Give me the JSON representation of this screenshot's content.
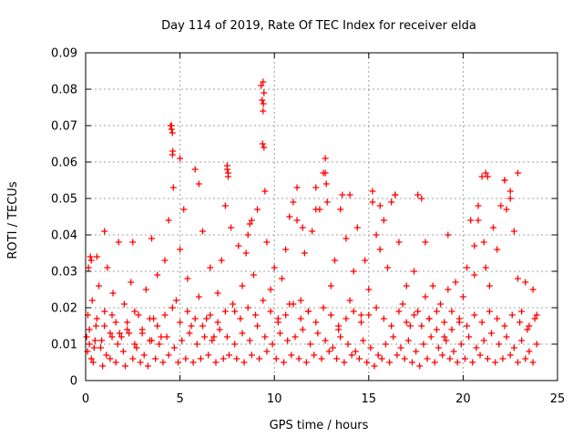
{
  "chart_data": {
    "type": "scatter",
    "title": "Day 114 of 2019, Rate Of TEC Index for receiver elda",
    "xlabel": "GPS time / hours",
    "ylabel": "ROTI / TECUs",
    "xlim": [
      0,
      25
    ],
    "ylim": [
      0,
      0.09
    ],
    "xticks": [
      0,
      5,
      10,
      15,
      20,
      25
    ],
    "yticks": [
      0,
      0.01,
      0.02,
      0.03,
      0.04,
      0.05,
      0.06,
      0.07,
      0.08,
      0.09
    ],
    "xtick_labels": [
      "0",
      "5",
      "10",
      "15",
      "20",
      "25"
    ],
    "ytick_labels": [
      "0",
      "0.01",
      "0.02",
      "0.03",
      "0.04",
      "0.05",
      "0.06",
      "0.07",
      "0.08",
      "0.09"
    ],
    "grid": true,
    "marker": "+",
    "marker_color": "#ff0000",
    "series": [
      {
        "name": "ROTI",
        "x": [
          0.05,
          0.12,
          0.2,
          0.25,
          0.35,
          0.45,
          0.55,
          0.7,
          0.85,
          1.0,
          1.15,
          1.3,
          1.45,
          1.6,
          1.75,
          1.9,
          2.05,
          2.2,
          2.4,
          2.6,
          2.8,
          3.0,
          3.2,
          3.4,
          3.6,
          3.8,
          4.0,
          4.2,
          4.4,
          4.5,
          4.55,
          4.6,
          4.65,
          4.8,
          5.0,
          5.2,
          5.4,
          5.6,
          5.8,
          6.0,
          6.2,
          6.4,
          6.6,
          6.8,
          7.0,
          7.2,
          7.4,
          7.5,
          7.55,
          7.7,
          7.9,
          8.1,
          8.3,
          8.5,
          8.7,
          8.9,
          9.1,
          9.3,
          9.35,
          9.4,
          9.45,
          9.5,
          9.6,
          9.8,
          10.0,
          10.2,
          10.4,
          10.6,
          10.8,
          11.0,
          11.2,
          11.4,
          11.6,
          11.8,
          12.0,
          12.2,
          12.4,
          12.6,
          12.7,
          12.8,
          13.0,
          13.2,
          13.4,
          13.6,
          13.8,
          14.0,
          14.2,
          14.4,
          14.6,
          14.8,
          15.0,
          15.2,
          15.4,
          15.6,
          15.8,
          16.0,
          16.2,
          16.4,
          16.6,
          16.8,
          17.0,
          17.2,
          17.4,
          17.6,
          17.8,
          18.0,
          18.2,
          18.4,
          18.6,
          18.8,
          19.0,
          19.2,
          19.4,
          19.6,
          19.8,
          20.0,
          20.2,
          20.4,
          20.6,
          20.8,
          21.0,
          21.1,
          21.2,
          21.4,
          21.6,
          21.8,
          22.0,
          22.2,
          22.3,
          22.5,
          22.7,
          22.9,
          23.1,
          23.3,
          23.5,
          23.7,
          23.9,
          0.1,
          0.3,
          0.5,
          0.8,
          1.1,
          1.4,
          1.7,
          2.0,
          2.3,
          2.7,
          3.1,
          3.5,
          3.9,
          4.3,
          4.7,
          5.1,
          5.5,
          5.9,
          6.3,
          6.7,
          7.1,
          7.5,
          7.9,
          8.3,
          8.7,
          9.1,
          9.5,
          9.9,
          10.3,
          10.7,
          11.1,
          11.5,
          11.9,
          12.3,
          12.7,
          13.1,
          13.5,
          13.9,
          14.3,
          14.7,
          15.1,
          15.5,
          15.9,
          16.3,
          16.7,
          17.1,
          17.5,
          17.9,
          18.3,
          18.7,
          19.1,
          19.5,
          19.9,
          20.3,
          20.7,
          21.1,
          21.5,
          21.9,
          22.3,
          22.7,
          23.1,
          23.5,
          23.9,
          0.2,
          0.6,
          1.0,
          1.4,
          1.8,
          2.2,
          2.6,
          3.0,
          3.4,
          3.8,
          4.2,
          4.6,
          5.0,
          5.4,
          5.8,
          6.2,
          6.6,
          7.0,
          7.4,
          7.8,
          8.2,
          8.6,
          9.0,
          9.4,
          9.8,
          10.2,
          10.6,
          11.0,
          11.4,
          11.8,
          12.2,
          12.6,
          13.0,
          13.4,
          13.8,
          14.2,
          14.6,
          15.0,
          15.4,
          15.8,
          16.2,
          16.6,
          17.0,
          17.4,
          17.8,
          18.2,
          18.6,
          19.0,
          19.4,
          19.8,
          20.2,
          20.6,
          21.0,
          21.4,
          21.8,
          22.2,
          22.6,
          23.0,
          23.4,
          23.8,
          0.4,
          0.9,
          1.3,
          1.6,
          2.1,
          2.5,
          2.9,
          3.3,
          3.7,
          4.1,
          4.4,
          4.9,
          5.3,
          5.7,
          6.1,
          6.5,
          6.9,
          7.3,
          7.6,
          8.0,
          8.4,
          8.8,
          9.2,
          9.6,
          10.1,
          10.5,
          10.9,
          11.3,
          11.7,
          12.1,
          12.5,
          12.9,
          13.3,
          13.7,
          14.1,
          14.5,
          14.9,
          15.3,
          15.7,
          16.1,
          16.5,
          16.9,
          17.3,
          17.7,
          18.1,
          18.5,
          18.9,
          19.3,
          19.7,
          20.1,
          20.5,
          20.9,
          21.3,
          21.7,
          22.1,
          22.5,
          22.9,
          23.3,
          23.7,
          4.55,
          4.6,
          4.62,
          9.4,
          9.45,
          9.42,
          9.38,
          12.7,
          12.75,
          5.0,
          6.0,
          7.5,
          7.55,
          11.2,
          13.5,
          14.0,
          15.2,
          15.6,
          16.4,
          17.6,
          21.2,
          21.3,
          22.2,
          22.5,
          22.9,
          20.8,
          20.6,
          19.2,
          18.0,
          10.8,
          11.5,
          12.2,
          8.6,
          8.8,
          3.5,
          2.5,
          1.0,
          0.6,
          0.3,
          0.15
        ],
        "y": [
          0.012,
          0.018,
          0.01,
          0.034,
          0.022,
          0.009,
          0.015,
          0.026,
          0.011,
          0.019,
          0.031,
          0.013,
          0.024,
          0.016,
          0.038,
          0.012,
          0.021,
          0.014,
          0.027,
          0.01,
          0.018,
          0.013,
          0.025,
          0.011,
          0.017,
          0.029,
          0.012,
          0.033,
          0.044,
          0.07,
          0.069,
          0.062,
          0.053,
          0.022,
          0.036,
          0.047,
          0.028,
          0.015,
          0.058,
          0.023,
          0.041,
          0.017,
          0.031,
          0.012,
          0.024,
          0.033,
          0.048,
          0.058,
          0.056,
          0.042,
          0.019,
          0.037,
          0.026,
          0.035,
          0.043,
          0.029,
          0.047,
          0.081,
          0.077,
          0.074,
          0.064,
          0.052,
          0.038,
          0.025,
          0.031,
          0.017,
          0.028,
          0.036,
          0.021,
          0.049,
          0.044,
          0.022,
          0.035,
          0.019,
          0.041,
          0.053,
          0.047,
          0.057,
          0.061,
          0.049,
          0.026,
          0.033,
          0.014,
          0.051,
          0.039,
          0.022,
          0.03,
          0.042,
          0.018,
          0.033,
          0.025,
          0.052,
          0.04,
          0.036,
          0.044,
          0.031,
          0.049,
          0.051,
          0.038,
          0.021,
          0.026,
          0.015,
          0.03,
          0.019,
          0.05,
          0.023,
          0.017,
          0.026,
          0.014,
          0.021,
          0.012,
          0.025,
          0.019,
          0.027,
          0.016,
          0.023,
          0.031,
          0.044,
          0.029,
          0.048,
          0.056,
          0.038,
          0.031,
          0.026,
          0.042,
          0.036,
          0.048,
          0.055,
          0.047,
          0.052,
          0.041,
          0.028,
          0.019,
          0.027,
          0.015,
          0.025,
          0.018,
          0.008,
          0.006,
          0.011,
          0.009,
          0.007,
          0.012,
          0.01,
          0.008,
          0.013,
          0.009,
          0.007,
          0.011,
          0.01,
          0.012,
          0.009,
          0.011,
          0.013,
          0.01,
          0.012,
          0.011,
          0.014,
          0.012,
          0.01,
          0.013,
          0.011,
          0.015,
          0.012,
          0.01,
          0.013,
          0.011,
          0.012,
          0.014,
          0.01,
          0.013,
          0.011,
          0.009,
          0.012,
          0.01,
          0.008,
          0.011,
          0.009,
          0.007,
          0.01,
          0.012,
          0.009,
          0.011,
          0.008,
          0.01,
          0.012,
          0.009,
          0.011,
          0.008,
          0.01,
          0.012,
          0.009,
          0.011,
          0.013,
          0.01,
          0.012,
          0.009,
          0.011,
          0.008,
          0.01,
          0.014,
          0.017,
          0.015,
          0.018,
          0.013,
          0.016,
          0.019,
          0.014,
          0.017,
          0.015,
          0.018,
          0.02,
          0.016,
          0.019,
          0.017,
          0.015,
          0.018,
          0.016,
          0.019,
          0.021,
          0.017,
          0.02,
          0.018,
          0.022,
          0.019,
          0.016,
          0.018,
          0.021,
          0.017,
          0.019,
          0.016,
          0.02,
          0.018,
          0.015,
          0.017,
          0.019,
          0.016,
          0.018,
          0.02,
          0.017,
          0.015,
          0.019,
          0.016,
          0.018,
          0.015,
          0.017,
          0.019,
          0.016,
          0.014,
          0.017,
          0.015,
          0.018,
          0.016,
          0.019,
          0.017,
          0.015,
          0.018,
          0.016,
          0.014,
          0.017,
          0.005,
          0.004,
          0.006,
          0.005,
          0.004,
          0.006,
          0.005,
          0.004,
          0.006,
          0.005,
          0.007,
          0.005,
          0.006,
          0.005,
          0.006,
          0.007,
          0.005,
          0.006,
          0.007,
          0.006,
          0.005,
          0.007,
          0.006,
          0.008,
          0.006,
          0.005,
          0.007,
          0.006,
          0.005,
          0.007,
          0.006,
          0.008,
          0.006,
          0.005,
          0.007,
          0.006,
          0.005,
          0.004,
          0.006,
          0.005,
          0.007,
          0.006,
          0.005,
          0.004,
          0.006,
          0.005,
          0.007,
          0.006,
          0.005,
          0.006,
          0.005,
          0.007,
          0.006,
          0.005,
          0.006,
          0.007,
          0.005,
          0.006,
          0.005,
          0.07,
          0.068,
          0.063,
          0.082,
          0.079,
          0.076,
          0.065,
          0.057,
          0.054,
          0.061,
          0.054,
          0.059,
          0.057,
          0.053,
          0.047,
          0.051,
          0.049,
          0.048,
          0.051,
          0.051,
          0.057,
          0.056,
          0.055,
          0.05,
          0.057,
          0.044,
          0.037,
          0.04,
          0.038,
          0.045,
          0.042,
          0.047,
          0.04,
          0.044,
          0.039,
          0.038,
          0.041,
          0.034,
          0.033,
          0.031
        ]
      }
    ]
  }
}
